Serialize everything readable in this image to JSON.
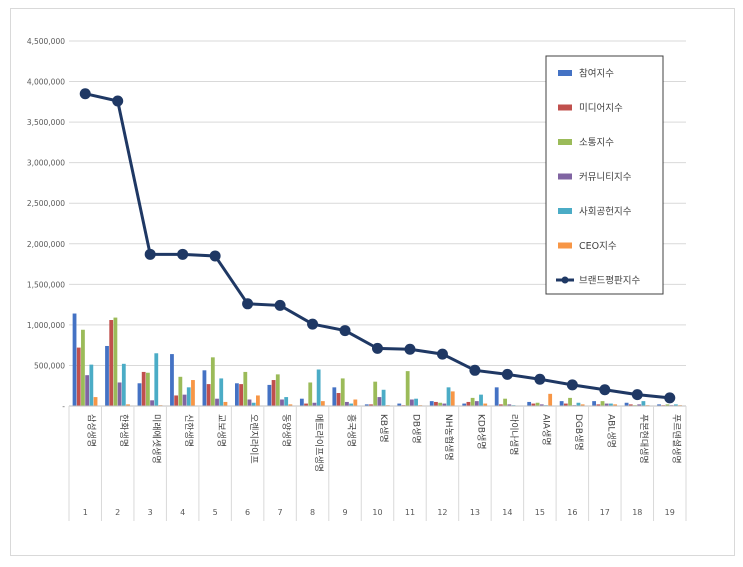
{
  "chart_data": {
    "type": "bar",
    "categories": [
      "삼성생명",
      "한화생명",
      "미래에셋생명",
      "신한생명",
      "교보생명",
      "오렌지라이프",
      "동양생명",
      "메트라이프생명",
      "흥국생명",
      "KB생명",
      "DB생명",
      "NH농협생명",
      "KDB생명",
      "라이나생명",
      "AIA생명",
      "DGB생명",
      "ABL생명",
      "푸본현대생명",
      "푸르덴셜생명"
    ],
    "ranks": [
      "1",
      "2",
      "3",
      "4",
      "5",
      "6",
      "7",
      "8",
      "9",
      "10",
      "11",
      "12",
      "13",
      "14",
      "15",
      "16",
      "17",
      "18",
      "19"
    ],
    "ylim": [
      0,
      4500000
    ],
    "yticks": [
      0,
      500000,
      1000000,
      1500000,
      2000000,
      2500000,
      3000000,
      3500000,
      4000000,
      4500000
    ],
    "ytick_labels": [
      "-",
      "500,000",
      "1,000,000",
      "1,500,000",
      "2,000,000",
      "2,500,000",
      "3,000,000",
      "3,500,000",
      "4,000,000",
      "4,500,000"
    ],
    "grid": true,
    "legend_position": "top-right",
    "series": [
      {
        "name": "참여지수",
        "kind": "bar",
        "color": "#4472c4",
        "values": [
          1140000,
          740000,
          280000,
          640000,
          440000,
          280000,
          260000,
          90000,
          230000,
          20000,
          30000,
          60000,
          30000,
          230000,
          50000,
          60000,
          60000,
          40000,
          20000
        ]
      },
      {
        "name": "미디어지수",
        "kind": "bar",
        "color": "#c0504d",
        "values": [
          720000,
          1060000,
          420000,
          130000,
          270000,
          270000,
          320000,
          30000,
          160000,
          20000,
          10000,
          50000,
          50000,
          20000,
          30000,
          30000,
          20000,
          20000,
          10000
        ]
      },
      {
        "name": "소통지수",
        "kind": "bar",
        "color": "#9bbb59",
        "values": [
          940000,
          1090000,
          410000,
          360000,
          600000,
          420000,
          390000,
          290000,
          340000,
          300000,
          430000,
          40000,
          100000,
          90000,
          40000,
          100000,
          60000,
          10000,
          20000
        ]
      },
      {
        "name": "커뮤니티지수",
        "kind": "bar",
        "color": "#8064a2",
        "values": [
          380000,
          290000,
          70000,
          140000,
          90000,
          80000,
          80000,
          40000,
          50000,
          110000,
          80000,
          30000,
          60000,
          20000,
          20000,
          10000,
          30000,
          20000,
          10000
        ]
      },
      {
        "name": "사회공헌지수",
        "kind": "bar",
        "color": "#4bacc6",
        "values": [
          510000,
          520000,
          650000,
          230000,
          340000,
          40000,
          110000,
          450000,
          30000,
          200000,
          90000,
          230000,
          140000,
          10000,
          10000,
          40000,
          30000,
          60000,
          20000
        ]
      },
      {
        "name": "CEO지수",
        "kind": "bar",
        "color": "#f79646",
        "values": [
          110000,
          20000,
          10000,
          320000,
          50000,
          130000,
          20000,
          60000,
          80000,
          10000,
          10000,
          180000,
          30000,
          0,
          150000,
          20000,
          20000,
          10000,
          10000
        ]
      },
      {
        "name": "브랜드평판지수",
        "kind": "line",
        "color": "#1f3864",
        "values": [
          3850000,
          3760000,
          1870000,
          1870000,
          1850000,
          1260000,
          1240000,
          1010000,
          930000,
          710000,
          700000,
          640000,
          440000,
          390000,
          330000,
          260000,
          200000,
          140000,
          100000
        ]
      }
    ]
  }
}
